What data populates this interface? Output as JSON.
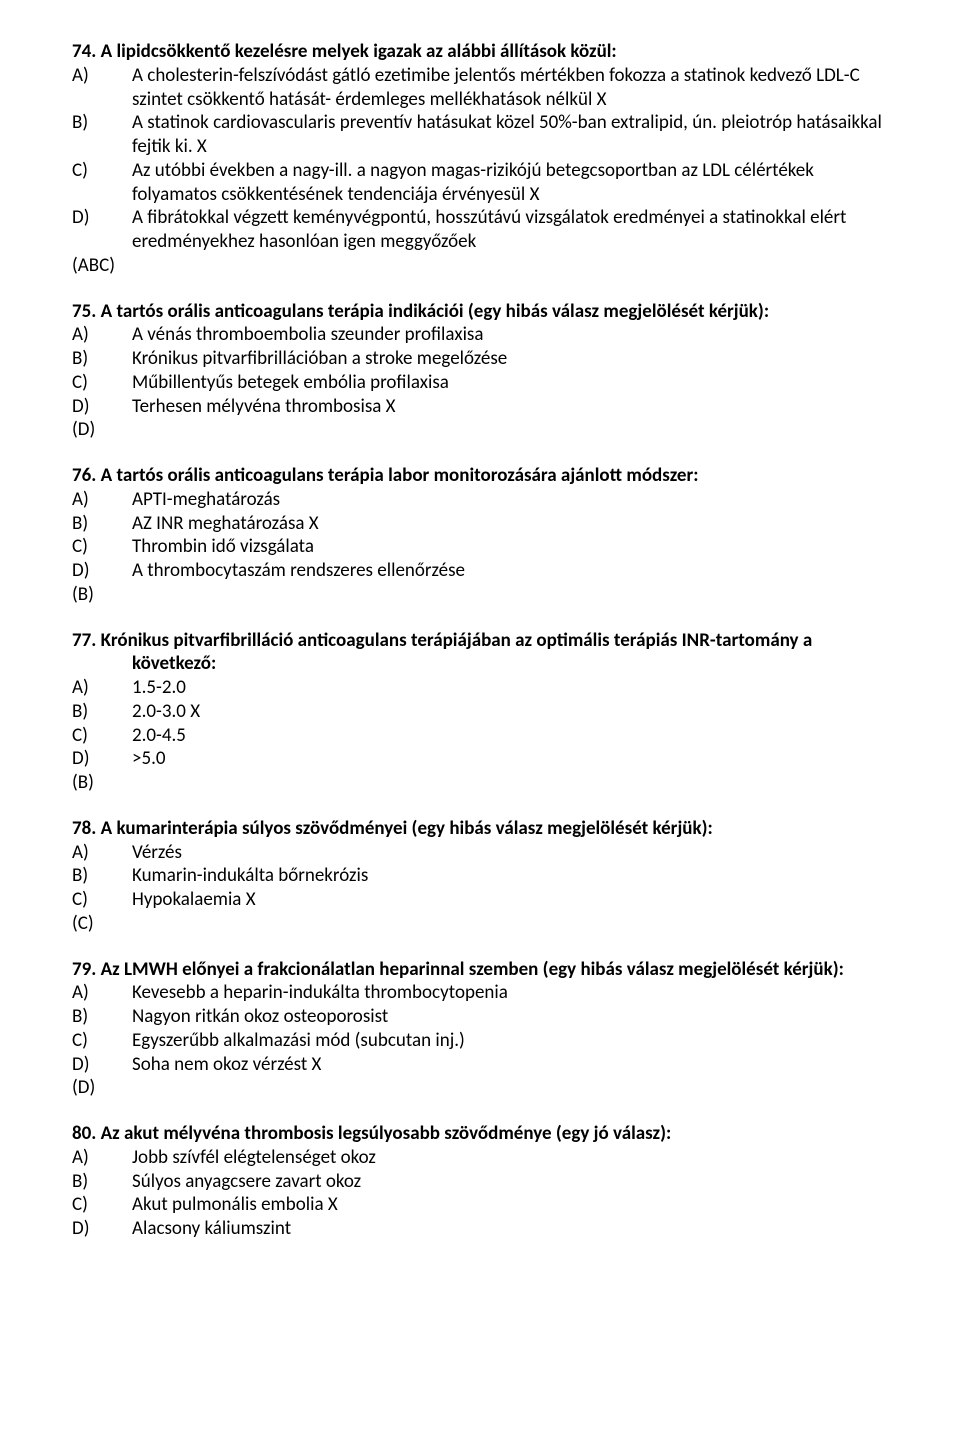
{
  "questions": [
    {
      "number": "74.",
      "title": "A lipidcsökkentő kezelésre melyek igazak az alábbi állítások közül:",
      "title_continuation": "",
      "options": [
        {
          "label": "A)",
          "text": "A cholesterin-felszívódást gátló ezetimibe jelentős mértékben fokozza a statinok kedvező LDL-C szintet csökkentő hatását- érdemleges mellékhatások nélkül X"
        },
        {
          "label": "B)",
          "text": "A statinok cardiovascularis preventív hatásukat közel 50%-ban extralipid, ún. pleiotróp hatásaikkal fejtik ki. X"
        },
        {
          "label": "C)",
          "text": "Az utóbbi években a nagy-ill. a nagyon magas-rizikójú betegcsoportban az LDL célértékek folyamatos csökkentésének tendenciája érvényesül X"
        },
        {
          "label": "D)",
          "text": "A fibrátokkal végzett keményvégpontú, hosszútávú vizsgálatok eredményei a statinokkal elért eredményekhez hasonlóan igen meggyőzőek"
        }
      ],
      "answer": "(ABC)"
    },
    {
      "number": "75.",
      "title": "A tartós orális anticoagulans terápia indikációi (egy hibás válasz megjelölését kérjük):",
      "options": [
        {
          "label": "A)",
          "text": "A vénás thromboembolia szeunder profilaxisa"
        },
        {
          "label": "B)",
          "text": "Krónikus pitvarfibrillációban a stroke megelőzése"
        },
        {
          "label": "C)",
          "text": "Műbillentyűs betegek embólia profilaxisa"
        },
        {
          "label": "D)",
          "text": "Terhesen mélyvéna thrombosisa X"
        }
      ],
      "answer": "(D)"
    },
    {
      "number": "76.",
      "title": "A tartós orális anticoagulans terápia labor monitorozására ajánlott módszer:",
      "options": [
        {
          "label": "A)",
          "text": "APTI-meghatározás"
        },
        {
          "label": "B)",
          "text": "AZ INR meghatározása X"
        },
        {
          "label": "C)",
          "text": "Thrombin idő vizsgálata"
        },
        {
          "label": "D)",
          "text": "A thrombocytaszám rendszeres ellenőrzése"
        }
      ],
      "answer": "(B)"
    },
    {
      "number": "77.",
      "title": "Krónikus pitvarfibrilláció anticoagulans terápiájában az optimális terápiás INR-tartomány a",
      "title_continuation": "következő:",
      "options": [
        {
          "label": "A)",
          "text": "1.5-2.0"
        },
        {
          "label": "B)",
          "text": "2.0-3.0 X"
        },
        {
          "label": "C)",
          "text": "2.0-4.5"
        },
        {
          "label": "D)",
          "text": ">5.0"
        }
      ],
      "answer": "(B)"
    },
    {
      "number": "78.",
      "title": "A kumarinterápia súlyos szövődményei (egy hibás válasz megjelölését kérjük):",
      "options": [
        {
          "label": "A)",
          "text": "Vérzés"
        },
        {
          "label": "B)",
          "text": "Kumarin-indukálta bőrnekrózis"
        },
        {
          "label": "C)",
          "text": "Hypokalaemia X"
        }
      ],
      "answer": "(C)"
    },
    {
      "number": "79.",
      "title": "Az LMWH előnyei a frakcionálatlan heparinnal szemben (egy hibás válasz megjelölését kérjük):",
      "options": [
        {
          "label": "A)",
          "text": "Kevesebb a heparin-indukálta thrombocytopenia"
        },
        {
          "label": "B)",
          "text": "Nagyon ritkán okoz osteoporosist"
        },
        {
          "label": "C)",
          "text": "Egyszerűbb alkalmazási mód (subcutan inj.)"
        },
        {
          "label": "D)",
          "text": "Soha nem okoz vérzést X"
        }
      ],
      "answer": "(D)"
    },
    {
      "number": "80.",
      "title": "Az akut mélyvéna thrombosis legsúlyosabb szövődménye (egy jó válasz):",
      "options": [
        {
          "label": "A)",
          "text": "Jobb szívfél elégtelenséget okoz"
        },
        {
          "label": "B)",
          "text": "Súlyos anyagcsere zavart okoz"
        },
        {
          "label": "C)",
          "text": "Akut pulmonális embolia X"
        },
        {
          "label": "D)",
          "text": "Alacsony káliumszint"
        }
      ],
      "answer": ""
    }
  ]
}
